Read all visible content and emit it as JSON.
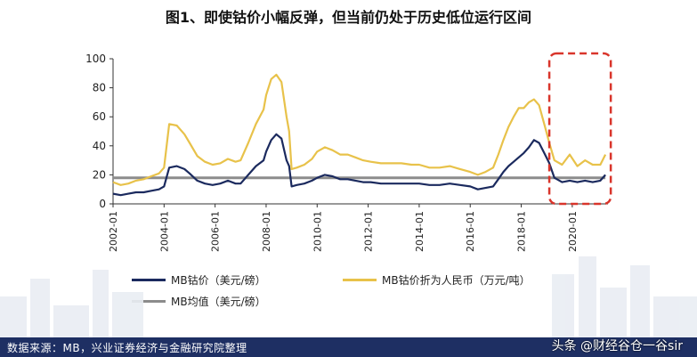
{
  "title": "图1、即使钴价小幅反弹，但当前仍处于历史低位运行区间",
  "footer": {
    "source": "数据来源：MB，兴业证券经济与金融研究院整理",
    "watermark": "头条 @财经谷仓一谷sir"
  },
  "colors": {
    "series_usd": "#1b2a5e",
    "series_cny": "#e8c24a",
    "series_avg": "#8c8c8c",
    "highlight_box": "#d9352b",
    "footer_bg": "#1e2f63"
  },
  "chart_data": {
    "type": "line",
    "title": "图1、即使钴价小幅反弹，但当前仍处于历史低位运行区间",
    "xlabel": "",
    "ylabel": "",
    "ylim": [
      0,
      100
    ],
    "yticks": [
      0,
      20,
      40,
      60,
      80,
      100
    ],
    "xlim": [
      2002.0,
      2021.4
    ],
    "xticks": [
      "2002-01",
      "2004-01",
      "2006-01",
      "2008-01",
      "2010-01",
      "2012-01",
      "2014-01",
      "2016-01",
      "2018-01",
      "2020-01"
    ],
    "grid": false,
    "legend_placement": "bottom",
    "series": [
      {
        "name": "MB钴价（美元/磅）",
        "x": [
          2002.0,
          2002.3,
          2002.6,
          2002.9,
          2003.2,
          2003.5,
          2003.8,
          2004.0,
          2004.2,
          2004.5,
          2004.8,
          2005.0,
          2005.3,
          2005.6,
          2005.9,
          2006.2,
          2006.5,
          2006.8,
          2007.0,
          2007.3,
          2007.6,
          2007.9,
          2008.0,
          2008.2,
          2008.4,
          2008.6,
          2008.8,
          2008.9,
          2009.0,
          2009.2,
          2009.5,
          2009.8,
          2010.0,
          2010.3,
          2010.6,
          2010.9,
          2011.2,
          2011.5,
          2011.8,
          2012.1,
          2012.5,
          2012.9,
          2013.3,
          2013.7,
          2014.0,
          2014.4,
          2014.8,
          2015.2,
          2015.6,
          2016.0,
          2016.3,
          2016.6,
          2016.9,
          2017.1,
          2017.3,
          2017.5,
          2017.7,
          2017.9,
          2018.1,
          2018.3,
          2018.5,
          2018.7,
          2018.9,
          2019.1,
          2019.3,
          2019.6,
          2019.9,
          2020.2,
          2020.5,
          2020.8,
          2021.1,
          2021.3
        ],
        "values": [
          7,
          6,
          7,
          8,
          8,
          9,
          10,
          12,
          25,
          26,
          24,
          21,
          16,
          14,
          13,
          14,
          16,
          14,
          14,
          20,
          26,
          30,
          36,
          44,
          48,
          45,
          30,
          26,
          12,
          13,
          14,
          16,
          18,
          20,
          19,
          17,
          17,
          16,
          15,
          15,
          14,
          14,
          14,
          14,
          14,
          13,
          13,
          14,
          13,
          12,
          10,
          11,
          12,
          17,
          22,
          26,
          29,
          32,
          35,
          39,
          44,
          42,
          35,
          28,
          18,
          15,
          16,
          15,
          16,
          15,
          16,
          20
        ]
      },
      {
        "name": "MB钴价折为人民币（万元/吨）",
        "x": [
          2002.0,
          2002.3,
          2002.6,
          2002.9,
          2003.2,
          2003.5,
          2003.8,
          2004.0,
          2004.2,
          2004.5,
          2004.8,
          2005.0,
          2005.3,
          2005.6,
          2005.9,
          2006.2,
          2006.5,
          2006.8,
          2007.0,
          2007.3,
          2007.6,
          2007.9,
          2008.0,
          2008.2,
          2008.4,
          2008.6,
          2008.8,
          2008.9,
          2009.0,
          2009.2,
          2009.5,
          2009.8,
          2010.0,
          2010.3,
          2010.6,
          2010.9,
          2011.2,
          2011.5,
          2011.8,
          2012.1,
          2012.5,
          2012.9,
          2013.3,
          2013.7,
          2014.0,
          2014.4,
          2014.8,
          2015.2,
          2015.6,
          2016.0,
          2016.3,
          2016.6,
          2016.9,
          2017.1,
          2017.3,
          2017.5,
          2017.7,
          2017.9,
          2018.1,
          2018.3,
          2018.5,
          2018.7,
          2018.9,
          2019.1,
          2019.3,
          2019.6,
          2019.9,
          2020.2,
          2020.5,
          2020.8,
          2021.1,
          2021.3
        ],
        "values": [
          15,
          13,
          14,
          16,
          17,
          19,
          21,
          25,
          55,
          54,
          48,
          42,
          33,
          29,
          27,
          28,
          31,
          29,
          30,
          42,
          55,
          65,
          75,
          86,
          89,
          84,
          60,
          50,
          24,
          25,
          27,
          31,
          36,
          39,
          37,
          34,
          34,
          32,
          30,
          29,
          28,
          28,
          28,
          27,
          27,
          25,
          25,
          26,
          24,
          22,
          20,
          22,
          25,
          34,
          44,
          53,
          60,
          66,
          66,
          70,
          72,
          68,
          55,
          42,
          30,
          27,
          34,
          26,
          30,
          27,
          27,
          34
        ]
      },
      {
        "name": "MB均值（美元/磅）",
        "x": [
          2002.0,
          2021.3
        ],
        "values": [
          18,
          18
        ]
      }
    ],
    "annotations": [
      {
        "type": "dashed-box",
        "x_range": [
          2019.1,
          2021.3
        ],
        "y_range": [
          0,
          100
        ]
      }
    ]
  }
}
